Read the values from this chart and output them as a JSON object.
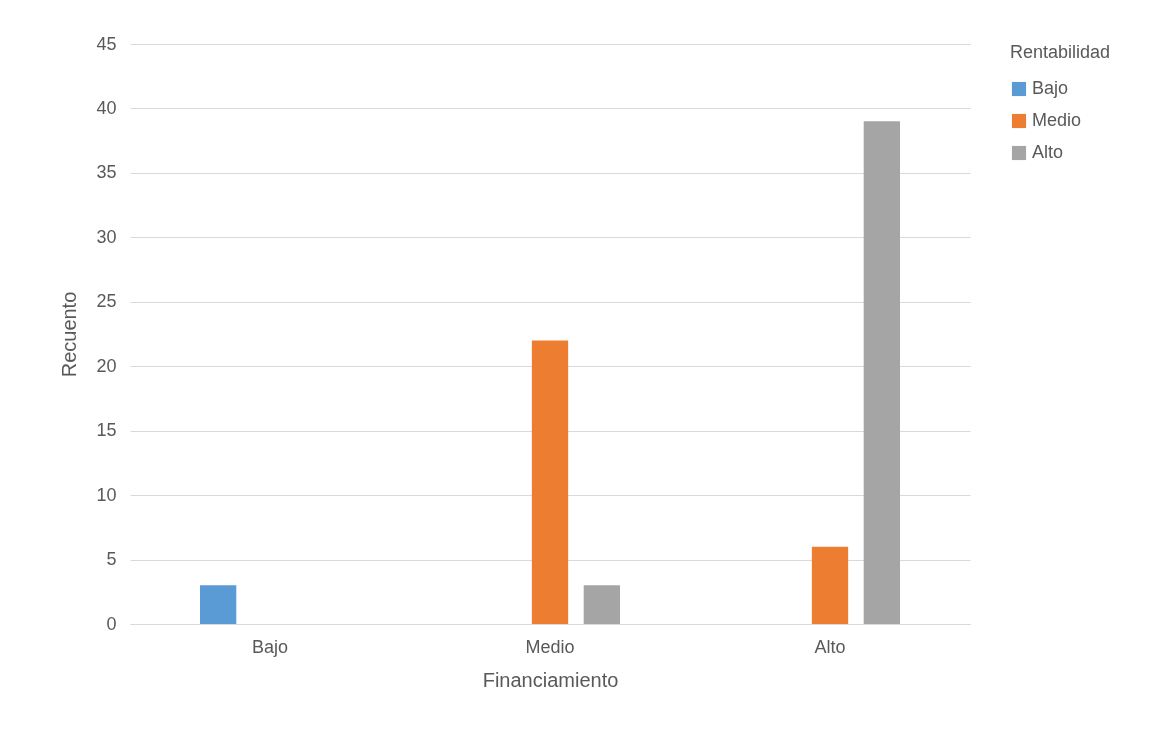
{
  "chart_data": {
    "type": "bar",
    "xlabel": "Financiamiento",
    "ylabel": "Recuento",
    "legend_title": "Rentabilidad",
    "categories": [
      "Bajo",
      "Medio",
      "Alto"
    ],
    "series": [
      {
        "name": "Bajo",
        "color": "#5b9bd5",
        "values": [
          3,
          0,
          0
        ]
      },
      {
        "name": "Medio",
        "color": "#ed7d31",
        "values": [
          0,
          22,
          6
        ]
      },
      {
        "name": "Alto",
        "color": "#a5a5a5",
        "values": [
          0,
          3,
          39
        ]
      }
    ],
    "ylim": [
      0,
      45
    ],
    "yticks": [
      0,
      5,
      10,
      15,
      20,
      25,
      30,
      35,
      40,
      45
    ],
    "grid": "y",
    "legend": "right"
  }
}
